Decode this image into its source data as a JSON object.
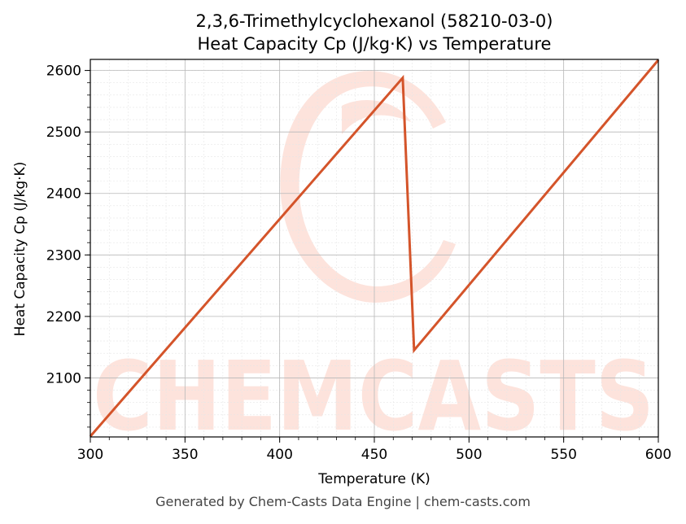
{
  "chart_data": {
    "type": "line",
    "title_line1": "2,3,6-Trimethylcyclohexanol (58210-03-0)",
    "title_line2": "Heat Capacity Cp (J/kg·K) vs Temperature",
    "xlabel": "Temperature (K)",
    "ylabel": "Heat Capacity Cp (J/kg·K)",
    "xlim": [
      300,
      600
    ],
    "ylim": [
      2004,
      2618
    ],
    "xticks": [
      300,
      350,
      400,
      450,
      500,
      550,
      600
    ],
    "yticks": [
      2100,
      2200,
      2300,
      2400,
      2500,
      2600
    ],
    "grid": true,
    "series": [
      {
        "color": "#d4542a",
        "x": [
          300,
          465,
          471,
          600
        ],
        "y": [
          2005,
          2588,
          2145,
          2617
        ]
      }
    ]
  },
  "watermark": {
    "text": "CHEMCASTS",
    "color": "#fde3dc"
  },
  "footer": "Generated by Chem-Casts Data Engine | chem-casts.com"
}
